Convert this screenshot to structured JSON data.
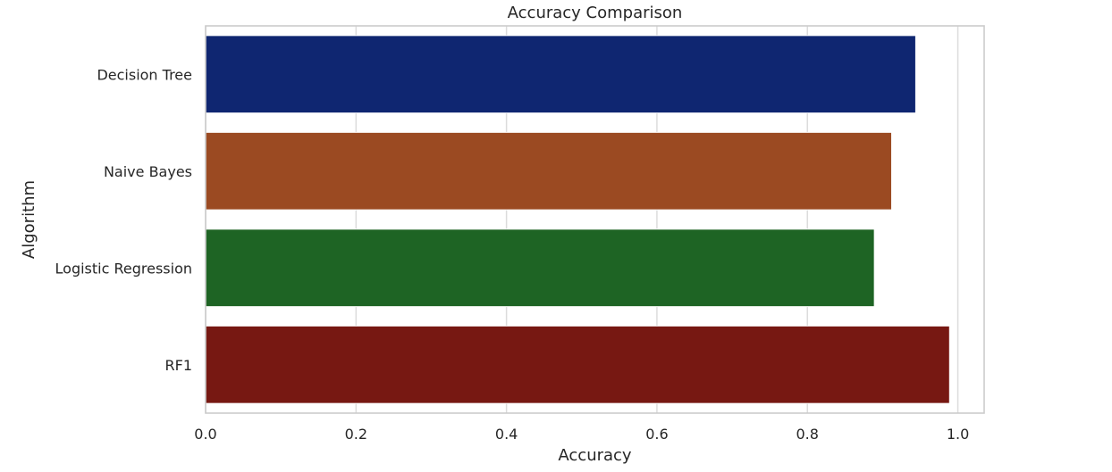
{
  "chart_data": {
    "type": "bar",
    "orientation": "horizontal",
    "title": "Accuracy Comparison",
    "xlabel": "Accuracy",
    "ylabel": "Algorithm",
    "categories": [
      "Decision Tree",
      "Naive Bayes",
      "Logistic Regression",
      "RF1"
    ],
    "values": [
      0.944,
      0.912,
      0.889,
      0.989
    ],
    "colors": [
      "#0f2671",
      "#9b4a22",
      "#1e6424",
      "#771812"
    ],
    "xlim": [
      0.0,
      1.035
    ],
    "xticks": [
      0.0,
      0.2,
      0.4,
      0.6,
      0.8,
      1.0
    ],
    "xtick_labels": [
      "0.0",
      "0.2",
      "0.4",
      "0.6",
      "0.8",
      "1.0"
    ],
    "grid": true,
    "legend": "none"
  }
}
